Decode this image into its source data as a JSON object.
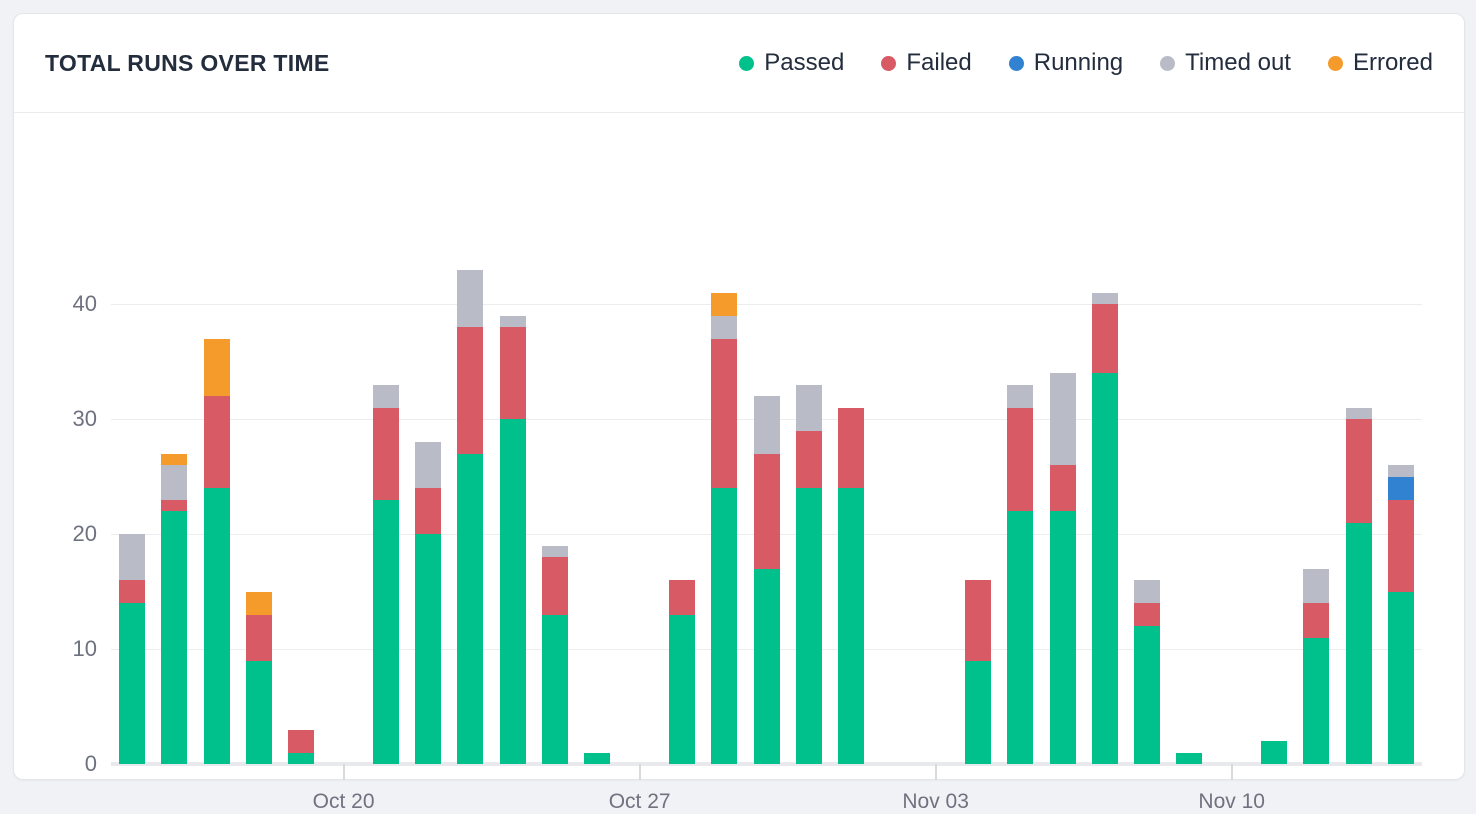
{
  "card": {
    "title": "TOTAL RUNS OVER TIME"
  },
  "legend": [
    {
      "label": "Passed",
      "color": "#00c08b"
    },
    {
      "label": "Failed",
      "color": "#d85a64"
    },
    {
      "label": "Running",
      "color": "#3282d2"
    },
    {
      "label": "Timed out",
      "color": "#b9bcc7"
    },
    {
      "label": "Errored",
      "color": "#f49b2b"
    }
  ],
  "chart_data": {
    "type": "bar",
    "stacked": true,
    "title": "TOTAL RUNS OVER TIME",
    "grid": "horizontal",
    "legend_position": "top-right",
    "num_slots": 31,
    "ylim": [
      0,
      45
    ],
    "y_ticks": [
      0,
      10,
      20,
      30,
      40
    ],
    "x_tick_labels": [
      {
        "index": 5,
        "label": "Oct 20"
      },
      {
        "index": 12,
        "label": "Oct 27"
      },
      {
        "index": 19,
        "label": "Nov 03"
      },
      {
        "index": 26,
        "label": "Nov 10"
      }
    ],
    "series": [
      {
        "name": "Passed",
        "color": "#00c08b",
        "values": [
          14,
          22,
          24,
          9,
          1,
          0,
          23,
          20,
          27,
          30,
          13,
          1,
          0,
          13,
          24,
          17,
          24,
          24,
          0,
          0,
          9,
          22,
          22,
          34,
          12,
          1,
          0,
          2,
          11,
          21,
          15
        ]
      },
      {
        "name": "Failed",
        "color": "#d85a64",
        "values": [
          2,
          1,
          8,
          4,
          2,
          0,
          8,
          4,
          11,
          8,
          5,
          0,
          0,
          3,
          13,
          10,
          5,
          7,
          0,
          0,
          7,
          9,
          4,
          6,
          2,
          0,
          0,
          0,
          3,
          9,
          8
        ]
      },
      {
        "name": "Running",
        "color": "#3282d2",
        "values": [
          0,
          0,
          0,
          0,
          0,
          0,
          0,
          0,
          0,
          0,
          0,
          0,
          0,
          0,
          0,
          0,
          0,
          0,
          0,
          0,
          0,
          0,
          0,
          0,
          0,
          0,
          0,
          0,
          0,
          0,
          2
        ]
      },
      {
        "name": "Timed out",
        "color": "#b9bcc7",
        "values": [
          4,
          3,
          0,
          0,
          0,
          0,
          2,
          4,
          5,
          1,
          1,
          0,
          0,
          0,
          2,
          5,
          4,
          0,
          0,
          0,
          0,
          2,
          8,
          1,
          2,
          0,
          0,
          0,
          3,
          1,
          1
        ]
      },
      {
        "name": "Errored",
        "color": "#f49b2b",
        "values": [
          0,
          1,
          5,
          2,
          0,
          0,
          0,
          0,
          0,
          0,
          0,
          0,
          0,
          0,
          2,
          0,
          0,
          0,
          0,
          0,
          0,
          0,
          0,
          0,
          0,
          0,
          0,
          0,
          0,
          0,
          0
        ]
      }
    ],
    "bar_totals": [
      20,
      27,
      37,
      15,
      3,
      0,
      33,
      28,
      43,
      39,
      19,
      1,
      0,
      16,
      41,
      32,
      33,
      31,
      0,
      0,
      16,
      33,
      34,
      41,
      16,
      1,
      0,
      2,
      17,
      31,
      26
    ]
  }
}
